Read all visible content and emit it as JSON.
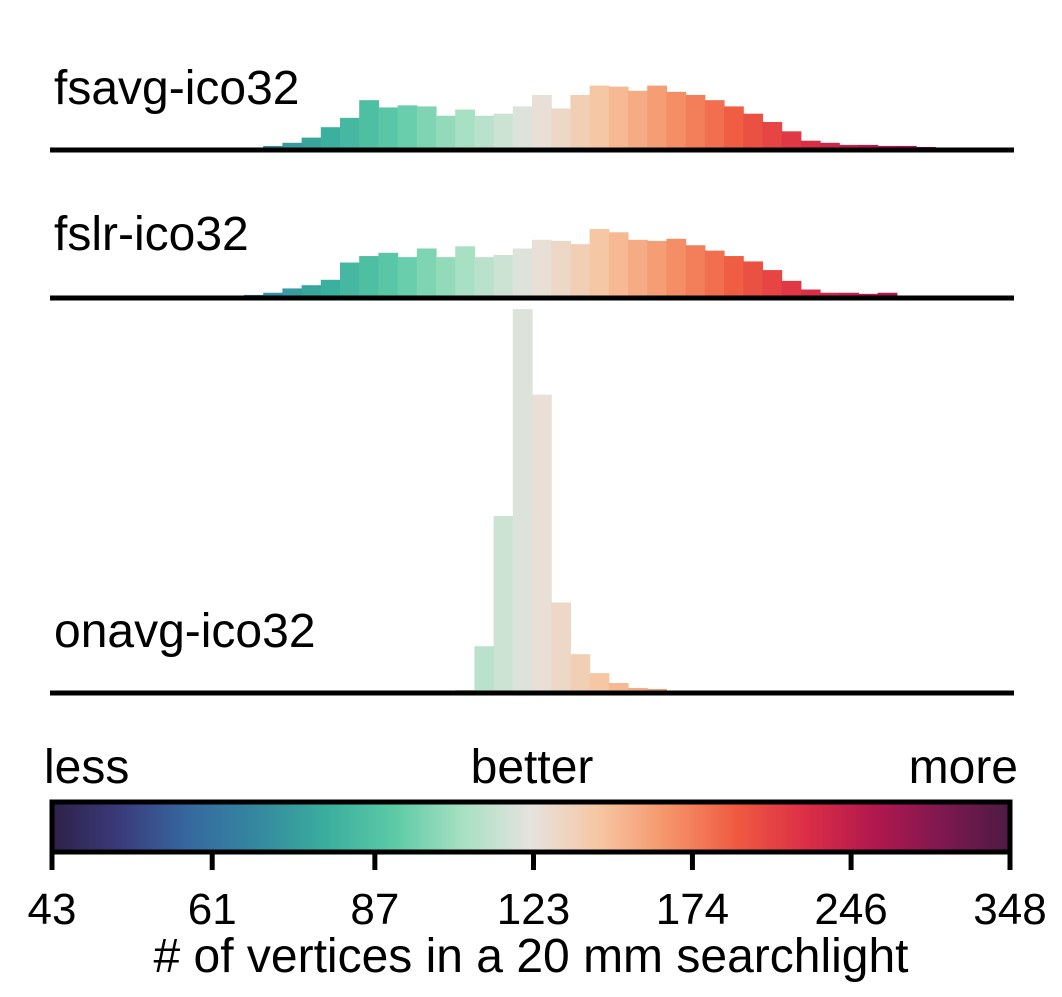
{
  "chart_data": {
    "type": "bar",
    "xlabel": "# of vertices in a 20 mm searchlight",
    "x_scale": "log",
    "xlim": [
      43,
      348
    ],
    "bin_count": 50,
    "colorbar": {
      "left_label": "less",
      "center_label": "better",
      "right_label": "more",
      "ticks": [
        "43",
        "61",
        "87",
        "123",
        "174",
        "246",
        "348"
      ],
      "tick_values": [
        43,
        61,
        87,
        123,
        174,
        246,
        348
      ],
      "colormap_stops": [
        "#2e2147",
        "#3a3b7c",
        "#3668a0",
        "#34889f",
        "#3aae9e",
        "#5ccaa6",
        "#a7e0c2",
        "#e6e3df",
        "#f6c6a3",
        "#f5946a",
        "#ef5a41",
        "#dc2f46",
        "#b2184e",
        "#7f1850",
        "#4c1a44"
      ]
    },
    "panels": [
      {
        "name": "fsavg-ico32",
        "ymax": 50,
        "values": [
          0,
          0,
          0,
          0,
          0,
          0,
          0,
          0,
          0,
          0,
          0,
          2,
          5,
          10,
          20,
          29,
          46,
          39,
          41,
          40,
          31,
          37,
          31,
          33,
          40,
          51,
          38,
          51,
          60,
          59,
          55,
          60,
          54,
          51,
          46,
          40,
          33,
          25,
          16,
          7,
          5,
          3,
          3,
          2,
          2,
          1,
          0,
          0,
          0,
          0
        ]
      },
      {
        "name": "fslr-ico32",
        "ymax": 50,
        "values": [
          0,
          0,
          0,
          0,
          0,
          0,
          0,
          0,
          0,
          0,
          1,
          3,
          7,
          10,
          15,
          31,
          37,
          40,
          36,
          44,
          36,
          46,
          36,
          38,
          44,
          52,
          51,
          48,
          62,
          59,
          52,
          51,
          53,
          47,
          42,
          37,
          32,
          24,
          14,
          6,
          3,
          3,
          2,
          3,
          0,
          0,
          0,
          0,
          0,
          0
        ]
      },
      {
        "name": "onavg-ico32",
        "ymax": 370,
        "values": [
          0,
          0,
          0,
          0,
          0,
          0,
          0,
          0,
          0,
          0,
          0,
          0,
          0,
          0,
          0,
          0,
          0,
          0,
          0,
          0,
          0,
          1,
          45,
          176,
          384,
          298,
          89,
          37,
          18,
          8,
          3,
          2,
          0,
          0,
          0,
          0,
          0,
          0,
          0,
          0,
          0,
          0,
          0,
          0,
          0,
          0,
          0,
          0,
          0,
          0
        ]
      }
    ]
  }
}
